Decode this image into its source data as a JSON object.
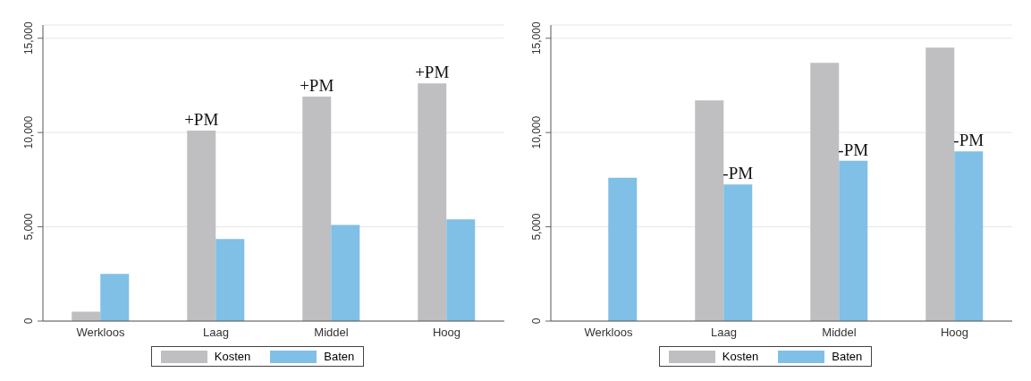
{
  "chart_data": [
    {
      "type": "bar",
      "categories": [
        "Werkloos",
        "Laag",
        "Middel",
        "Hoog"
      ],
      "series": [
        {
          "name": "Kosten",
          "color": "#bfbfc1",
          "values": [
            500,
            10100,
            11900,
            12600
          ]
        },
        {
          "name": "Baten",
          "color": "#80bfe6",
          "values": [
            2500,
            4350,
            5100,
            5400
          ]
        }
      ],
      "ylim": [
        0,
        15700
      ],
      "yticks": [
        {
          "value": 0,
          "label": "0"
        },
        {
          "value": 5000,
          "label": "5,000"
        },
        {
          "value": 10000,
          "label": "10,000"
        },
        {
          "value": 15000,
          "label": "15,000"
        }
      ],
      "grid": "y",
      "legend": "bottom",
      "annotations": [
        {
          "text": "+PM",
          "x": "Laag",
          "y": 10100
        },
        {
          "text": "+PM",
          "x": "Middel",
          "y": 11900
        },
        {
          "text": "+PM",
          "x": "Hoog",
          "y": 12600
        }
      ]
    },
    {
      "type": "bar",
      "categories": [
        "Werkloos",
        "Laag",
        "Middel",
        "Hoog"
      ],
      "series": [
        {
          "name": "Kosten",
          "color": "#bfbfc1",
          "values": [
            0,
            11700,
            13700,
            14500
          ]
        },
        {
          "name": "Baten",
          "color": "#80bfe6",
          "values": [
            7600,
            7250,
            8500,
            9000
          ]
        }
      ],
      "ylim": [
        0,
        15700
      ],
      "yticks": [
        {
          "value": 0,
          "label": "0"
        },
        {
          "value": 5000,
          "label": "5,000"
        },
        {
          "value": 10000,
          "label": "10,000"
        },
        {
          "value": 15000,
          "label": "15,000"
        }
      ],
      "grid": "y",
      "legend": "bottom",
      "annotations": [
        {
          "text": "-PM",
          "x": "Laag",
          "y": 7250
        },
        {
          "text": "-PM",
          "x": "Middel",
          "y": 8500
        },
        {
          "text": "-PM",
          "x": "Hoog",
          "y": 9000
        }
      ]
    }
  ]
}
